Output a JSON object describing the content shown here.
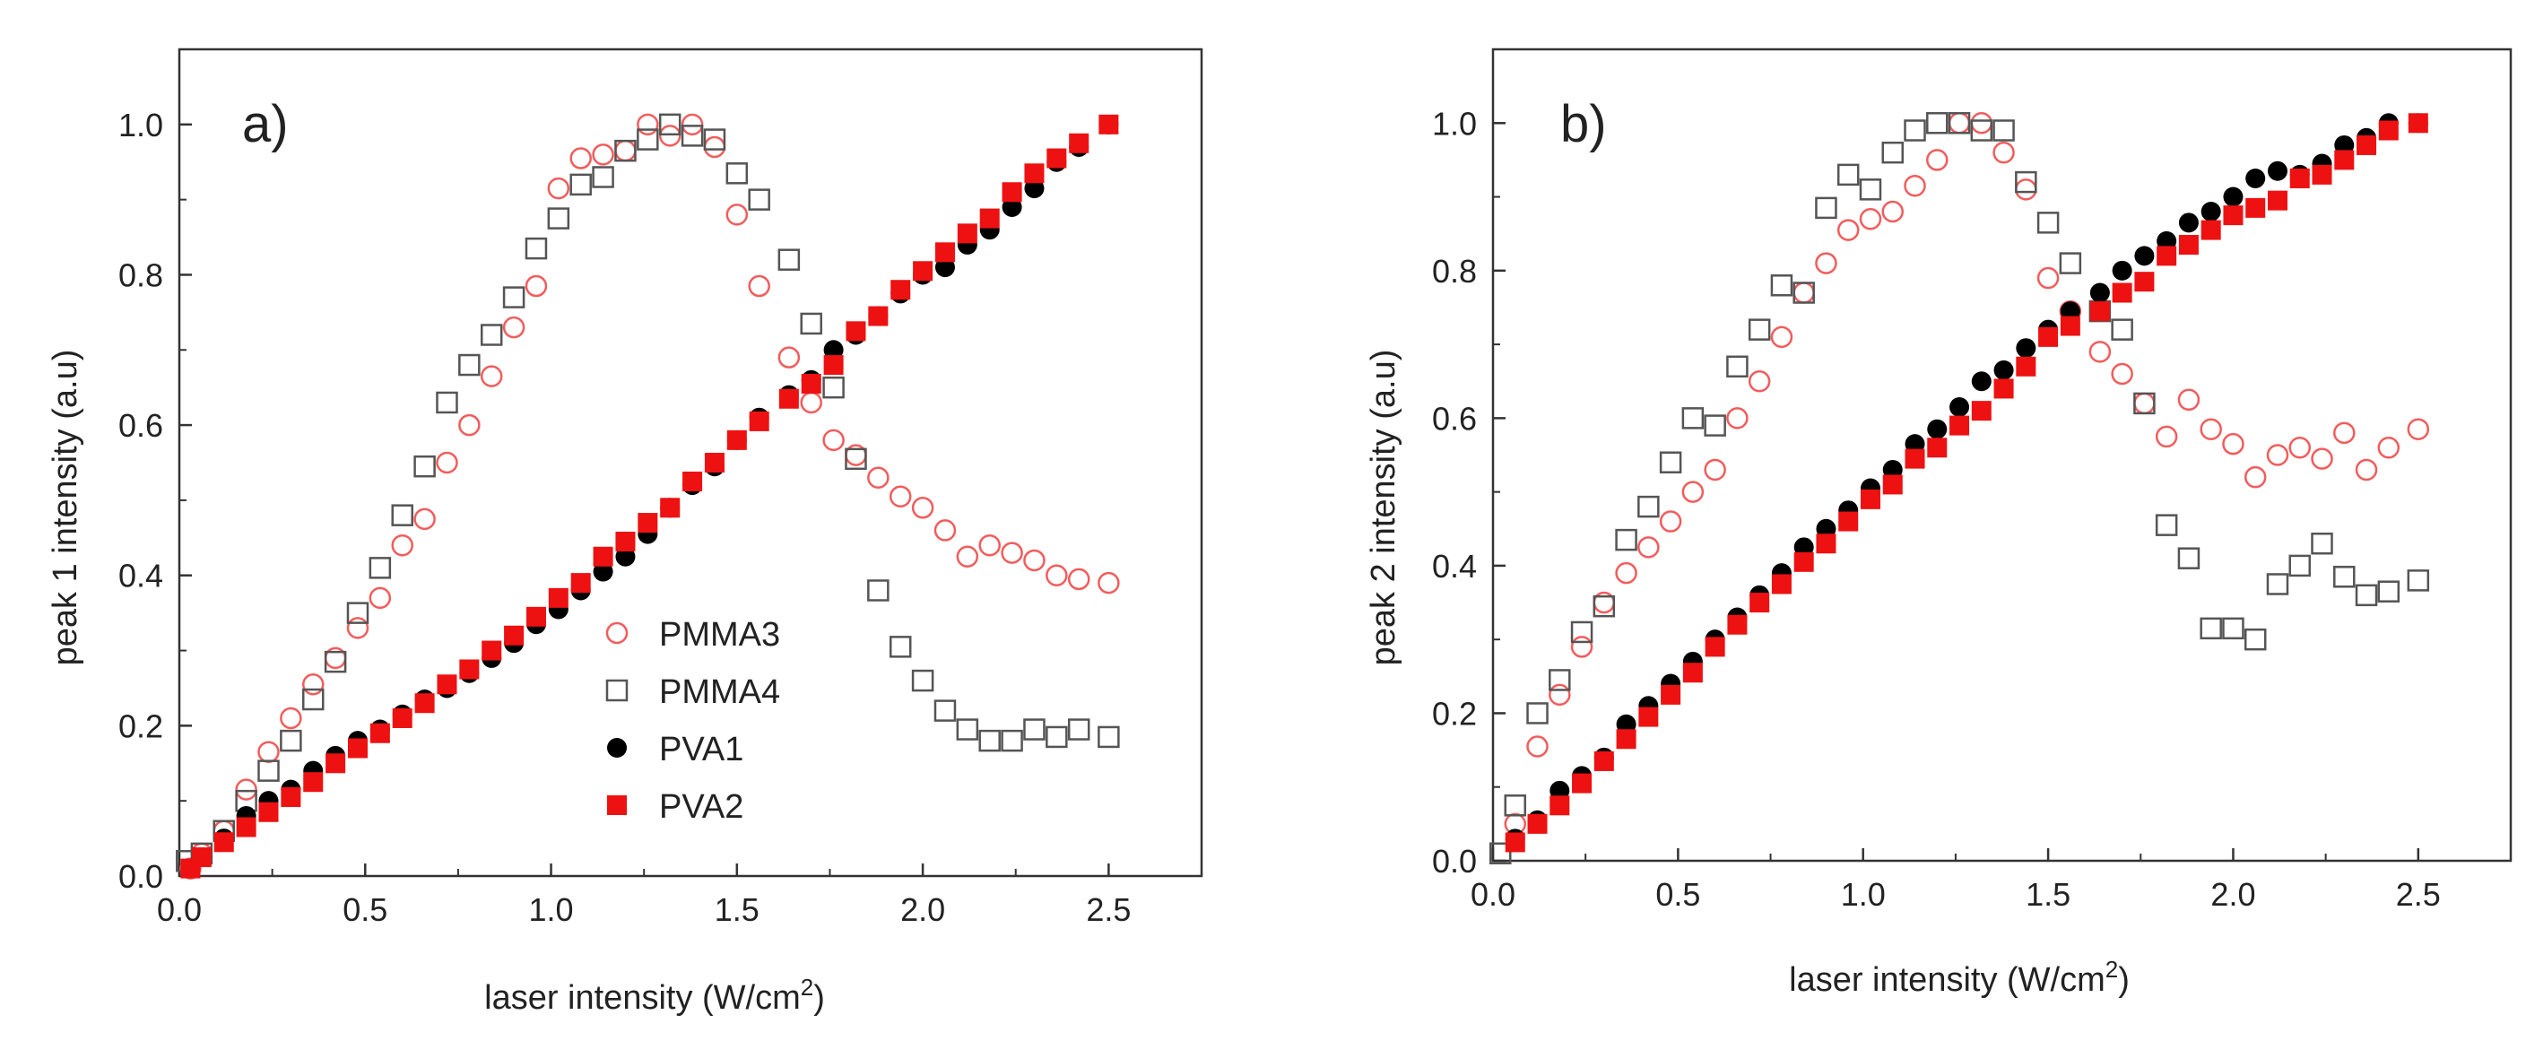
{
  "chart_data": [
    {
      "type": "scatter",
      "panel_label": "a)",
      "xlabel": "laser intensity (W/cm",
      "xlabel_sup": "2",
      "xlabel_close": ")",
      "ylabel": "peak 1 intensity (a.u)",
      "xlim": [
        0,
        2.75
      ],
      "ylim": [
        0,
        1.1
      ],
      "xticks": [
        0.0,
        0.5,
        1.0,
        1.5,
        2.0,
        2.5
      ],
      "xtick_labels": [
        "0.0",
        "0.5",
        "1.0",
        "1.5",
        "2.0",
        "2.5"
      ],
      "yticks": [
        0.0,
        0.2,
        0.4,
        0.6,
        0.8,
        1.0
      ],
      "ytick_labels": [
        "0.0",
        "0.2",
        "0.4",
        "0.6",
        "0.8",
        "1.0"
      ],
      "legend": {
        "placement": "center-right",
        "entries": [
          "PMMA3",
          "PMMA4",
          "PVA1",
          "PVA2"
        ]
      },
      "series": [
        {
          "name": "PMMA3",
          "marker": "circle-open",
          "color": "#f25c5c",
          "x": [
            0.03,
            0.06,
            0.12,
            0.18,
            0.24,
            0.3,
            0.36,
            0.42,
            0.48,
            0.54,
            0.6,
            0.66,
            0.72,
            0.78,
            0.84,
            0.9,
            0.96,
            1.02,
            1.08,
            1.14,
            1.2,
            1.26,
            1.32,
            1.38,
            1.44,
            1.5,
            1.56,
            1.64,
            1.7,
            1.76,
            1.82,
            1.88,
            1.94,
            2.0,
            2.06,
            2.12,
            2.18,
            2.24,
            2.3,
            2.36,
            2.42,
            2.5
          ],
          "y": [
            0.01,
            0.03,
            0.06,
            0.115,
            0.165,
            0.21,
            0.255,
            0.29,
            0.33,
            0.37,
            0.44,
            0.475,
            0.55,
            0.6,
            0.665,
            0.73,
            0.785,
            0.915,
            0.955,
            0.96,
            0.965,
            1.0,
            0.985,
            1.0,
            0.97,
            0.88,
            0.785,
            0.69,
            0.63,
            0.58,
            0.56,
            0.53,
            0.505,
            0.49,
            0.46,
            0.425,
            0.44,
            0.43,
            0.42,
            0.4,
            0.395,
            0.39
          ]
        },
        {
          "name": "PMMA4",
          "marker": "square-open",
          "color": "#555555",
          "x": [
            0.02,
            0.06,
            0.12,
            0.18,
            0.24,
            0.3,
            0.36,
            0.42,
            0.48,
            0.54,
            0.6,
            0.66,
            0.72,
            0.78,
            0.84,
            0.9,
            0.96,
            1.02,
            1.08,
            1.14,
            1.2,
            1.26,
            1.32,
            1.38,
            1.44,
            1.5,
            1.56,
            1.64,
            1.7,
            1.76,
            1.82,
            1.88,
            1.94,
            2.0,
            2.06,
            2.12,
            2.18,
            2.24,
            2.3,
            2.36,
            2.42,
            2.5
          ],
          "y": [
            0.02,
            0.03,
            0.06,
            0.1,
            0.14,
            0.18,
            0.235,
            0.285,
            0.35,
            0.41,
            0.48,
            0.545,
            0.63,
            0.68,
            0.72,
            0.77,
            0.835,
            0.875,
            0.92,
            0.93,
            0.965,
            0.98,
            1.0,
            0.985,
            0.98,
            0.935,
            0.9,
            0.82,
            0.735,
            0.65,
            0.555,
            0.38,
            0.305,
            0.26,
            0.22,
            0.195,
            0.18,
            0.18,
            0.195,
            0.185,
            0.195,
            0.185
          ]
        },
        {
          "name": "PVA1",
          "marker": "circle-filled",
          "color": "#000000",
          "x": [
            0.03,
            0.06,
            0.12,
            0.18,
            0.24,
            0.3,
            0.36,
            0.42,
            0.48,
            0.54,
            0.6,
            0.66,
            0.72,
            0.78,
            0.84,
            0.9,
            0.96,
            1.02,
            1.08,
            1.14,
            1.2,
            1.26,
            1.32,
            1.38,
            1.44,
            1.5,
            1.56,
            1.64,
            1.7,
            1.76,
            1.82,
            1.88,
            1.94,
            2.0,
            2.06,
            2.12,
            2.18,
            2.24,
            2.3,
            2.36,
            2.42,
            2.5
          ],
          "y": [
            0.01,
            0.025,
            0.05,
            0.08,
            0.1,
            0.115,
            0.14,
            0.16,
            0.18,
            0.195,
            0.215,
            0.235,
            0.25,
            0.27,
            0.29,
            0.31,
            0.335,
            0.355,
            0.38,
            0.405,
            0.425,
            0.455,
            0.49,
            0.52,
            0.545,
            0.58,
            0.61,
            0.64,
            0.66,
            0.7,
            0.72,
            0.745,
            0.775,
            0.8,
            0.81,
            0.84,
            0.86,
            0.89,
            0.915,
            0.95,
            0.97,
            1.0
          ]
        },
        {
          "name": "PVA2",
          "marker": "square-filled",
          "color": "#ee1111",
          "x": [
            0.03,
            0.06,
            0.12,
            0.18,
            0.24,
            0.3,
            0.36,
            0.42,
            0.48,
            0.54,
            0.6,
            0.66,
            0.72,
            0.78,
            0.84,
            0.9,
            0.96,
            1.02,
            1.08,
            1.14,
            1.2,
            1.26,
            1.32,
            1.38,
            1.44,
            1.5,
            1.56,
            1.64,
            1.7,
            1.76,
            1.82,
            1.88,
            1.94,
            2.0,
            2.06,
            2.12,
            2.18,
            2.24,
            2.3,
            2.36,
            2.42,
            2.5
          ],
          "y": [
            0.01,
            0.025,
            0.045,
            0.065,
            0.085,
            0.105,
            0.125,
            0.15,
            0.17,
            0.19,
            0.21,
            0.23,
            0.255,
            0.275,
            0.3,
            0.32,
            0.345,
            0.37,
            0.39,
            0.425,
            0.445,
            0.47,
            0.49,
            0.525,
            0.55,
            0.58,
            0.605,
            0.635,
            0.655,
            0.68,
            0.725,
            0.745,
            0.78,
            0.805,
            0.83,
            0.855,
            0.875,
            0.91,
            0.935,
            0.955,
            0.975,
            1.0
          ]
        }
      ]
    },
    {
      "type": "scatter",
      "panel_label": "b)",
      "xlabel": "laser intensity (W/cm",
      "xlabel_sup": "2",
      "xlabel_close": ")",
      "ylabel": "peak 2 intensity (a.u)",
      "xlim": [
        0,
        2.75
      ],
      "ylim": [
        0,
        1.1
      ],
      "xticks": [
        0.0,
        0.5,
        1.0,
        1.5,
        2.0,
        2.5
      ],
      "xtick_labels": [
        "0.0",
        "0.5",
        "1.0",
        "1.5",
        "2.0",
        "2.5"
      ],
      "yticks": [
        0.0,
        0.2,
        0.4,
        0.6,
        0.8,
        1.0
      ],
      "ytick_labels": [
        "0.0",
        "0.2",
        "0.4",
        "0.6",
        "0.8",
        "1.0"
      ],
      "series": [
        {
          "name": "PMMA3",
          "marker": "circle-open",
          "color": "#f25c5c",
          "x": [
            0.06,
            0.12,
            0.18,
            0.24,
            0.3,
            0.36,
            0.42,
            0.48,
            0.54,
            0.6,
            0.66,
            0.72,
            0.78,
            0.84,
            0.9,
            0.96,
            1.02,
            1.08,
            1.14,
            1.2,
            1.26,
            1.32,
            1.38,
            1.44,
            1.5,
            1.56,
            1.64,
            1.7,
            1.76,
            1.82,
            1.88,
            1.94,
            2.0,
            2.06,
            2.12,
            2.18,
            2.24,
            2.3,
            2.36,
            2.42,
            2.5
          ],
          "y": [
            0.05,
            0.155,
            0.225,
            0.29,
            0.35,
            0.39,
            0.425,
            0.46,
            0.5,
            0.53,
            0.6,
            0.65,
            0.71,
            0.77,
            0.81,
            0.855,
            0.87,
            0.88,
            0.915,
            0.95,
            1.0,
            1.0,
            0.96,
            0.91,
            0.79,
            0.745,
            0.69,
            0.66,
            0.62,
            0.575,
            0.625,
            0.585,
            0.565,
            0.52,
            0.55,
            0.56,
            0.545,
            0.58,
            0.53,
            0.56,
            0.585
          ]
        },
        {
          "name": "PMMA4",
          "marker": "square-open",
          "color": "#555555",
          "x": [
            0.02,
            0.06,
            0.12,
            0.18,
            0.24,
            0.3,
            0.36,
            0.42,
            0.48,
            0.54,
            0.6,
            0.66,
            0.72,
            0.78,
            0.84,
            0.9,
            0.96,
            1.02,
            1.08,
            1.14,
            1.2,
            1.26,
            1.32,
            1.38,
            1.44,
            1.5,
            1.56,
            1.64,
            1.7,
            1.76,
            1.82,
            1.88,
            1.94,
            2.0,
            2.06,
            2.12,
            2.18,
            2.24,
            2.3,
            2.36,
            2.42,
            2.5
          ],
          "y": [
            0.01,
            0.075,
            0.2,
            0.245,
            0.31,
            0.345,
            0.435,
            0.48,
            0.54,
            0.6,
            0.59,
            0.67,
            0.72,
            0.78,
            0.77,
            0.885,
            0.93,
            0.91,
            0.96,
            0.99,
            1.0,
            1.0,
            0.99,
            0.99,
            0.92,
            0.865,
            0.81,
            0.745,
            0.72,
            0.62,
            0.455,
            0.41,
            0.315,
            0.315,
            0.3,
            0.375,
            0.4,
            0.43,
            0.385,
            0.36,
            0.365,
            0.38
          ]
        },
        {
          "name": "PVA1",
          "marker": "circle-filled",
          "color": "#000000",
          "x": [
            0.06,
            0.12,
            0.18,
            0.24,
            0.3,
            0.36,
            0.42,
            0.48,
            0.54,
            0.6,
            0.66,
            0.72,
            0.78,
            0.84,
            0.9,
            0.96,
            1.02,
            1.08,
            1.14,
            1.2,
            1.26,
            1.32,
            1.38,
            1.44,
            1.5,
            1.56,
            1.64,
            1.7,
            1.76,
            1.82,
            1.88,
            1.94,
            2.0,
            2.06,
            2.12,
            2.18,
            2.24,
            2.3,
            2.36,
            2.42,
            2.5
          ],
          "y": [
            0.03,
            0.055,
            0.095,
            0.115,
            0.14,
            0.185,
            0.21,
            0.24,
            0.27,
            0.3,
            0.33,
            0.36,
            0.39,
            0.425,
            0.45,
            0.475,
            0.505,
            0.53,
            0.565,
            0.585,
            0.615,
            0.65,
            0.665,
            0.695,
            0.72,
            0.745,
            0.77,
            0.8,
            0.82,
            0.84,
            0.865,
            0.88,
            0.9,
            0.925,
            0.935,
            0.93,
            0.945,
            0.97,
            0.98,
            1.0,
            1.0
          ]
        },
        {
          "name": "PVA2",
          "marker": "square-filled",
          "color": "#ee1111",
          "x": [
            0.06,
            0.12,
            0.18,
            0.24,
            0.3,
            0.36,
            0.42,
            0.48,
            0.54,
            0.6,
            0.66,
            0.72,
            0.78,
            0.84,
            0.9,
            0.96,
            1.02,
            1.08,
            1.14,
            1.2,
            1.26,
            1.32,
            1.38,
            1.44,
            1.5,
            1.56,
            1.64,
            1.7,
            1.76,
            1.82,
            1.88,
            1.94,
            2.0,
            2.06,
            2.12,
            2.18,
            2.24,
            2.3,
            2.36,
            2.42,
            2.5
          ],
          "y": [
            0.025,
            0.05,
            0.075,
            0.105,
            0.135,
            0.165,
            0.195,
            0.225,
            0.255,
            0.29,
            0.32,
            0.35,
            0.375,
            0.405,
            0.43,
            0.46,
            0.49,
            0.51,
            0.545,
            0.56,
            0.59,
            0.61,
            0.64,
            0.67,
            0.71,
            0.725,
            0.745,
            0.77,
            0.785,
            0.82,
            0.835,
            0.855,
            0.875,
            0.885,
            0.895,
            0.925,
            0.93,
            0.95,
            0.97,
            0.99,
            1.0
          ]
        }
      ]
    }
  ]
}
